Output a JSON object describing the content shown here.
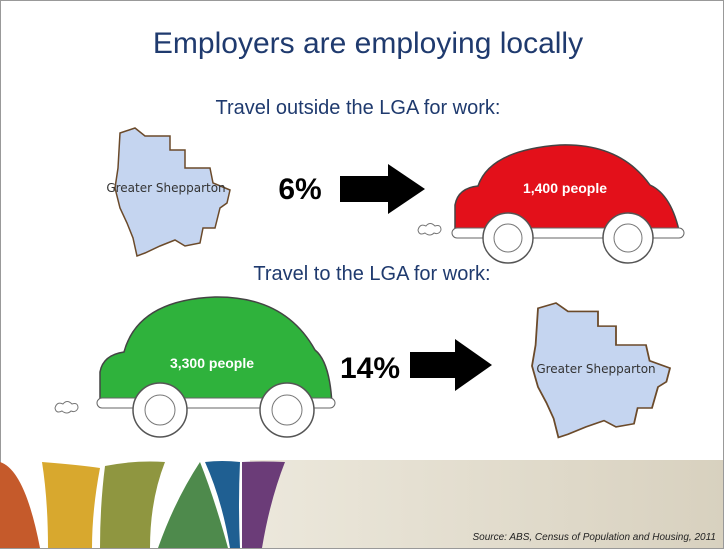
{
  "title": "Employers are employing locally",
  "sections": [
    {
      "heading": "Travel outside the LGA for work:",
      "region_label": "Greater Shepparton",
      "percent": "6%",
      "car_label": "1,400 people"
    },
    {
      "heading": "Travel to the LGA for work:",
      "region_label": "Greater Shepparton",
      "percent": "14%",
      "car_label": "3,300 people"
    }
  ],
  "source": "Source: ABS, Census of Population and Housing, 2011"
}
